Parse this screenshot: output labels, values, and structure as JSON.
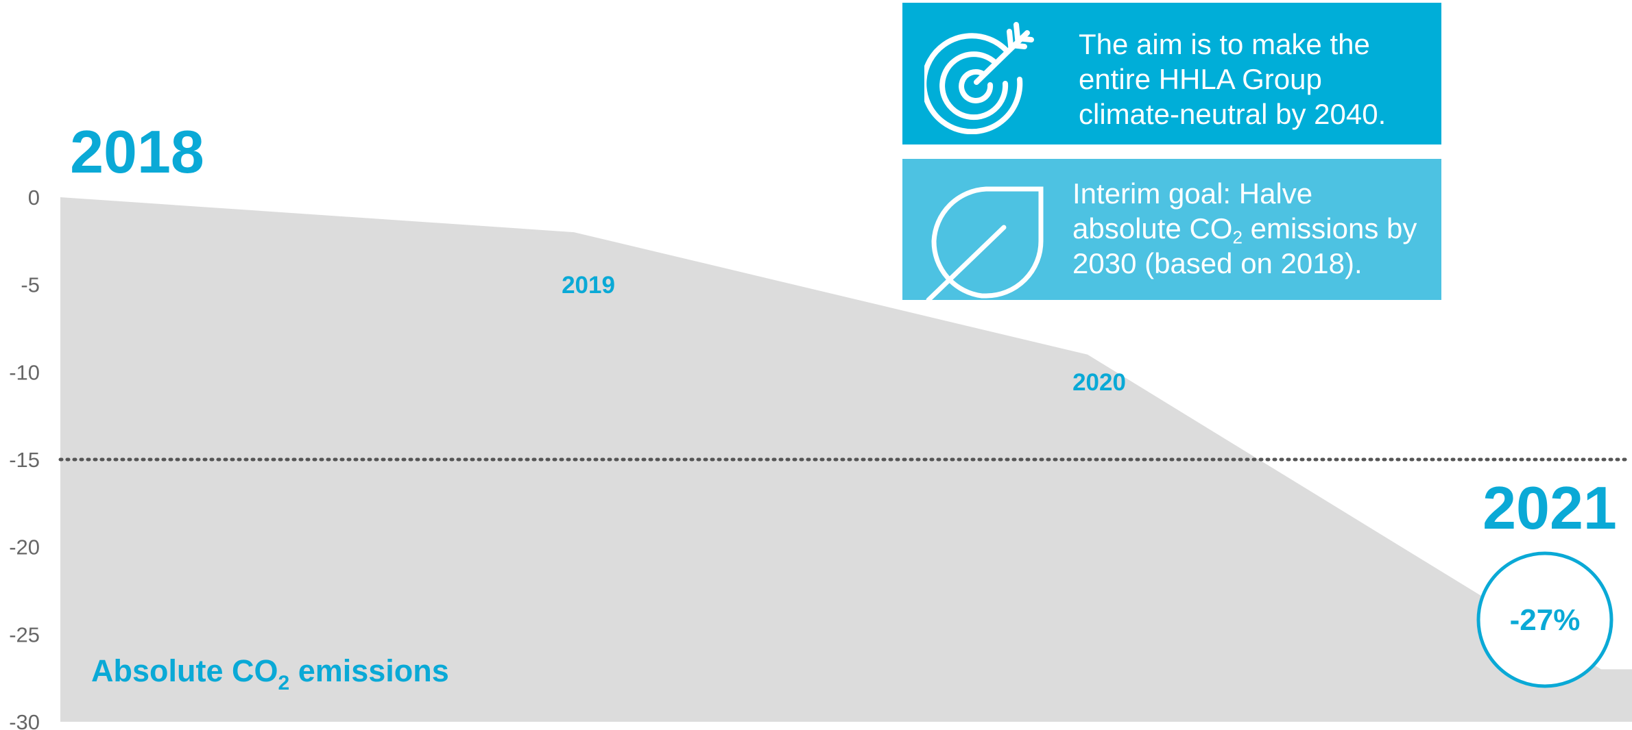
{
  "colors": {
    "accent": "#0aa9d6",
    "box_aim_bg": "#00aed8",
    "box_interim_bg": "#4dc2e2",
    "area_fill": "#dcdcdc",
    "reference_line": "#555555",
    "tick_text": "#666666"
  },
  "chart_data": {
    "type": "area",
    "x": [
      "2018",
      "2019",
      "2020",
      "2021"
    ],
    "x_extended": [
      2018,
      2019,
      2020,
      2021.0
    ],
    "series": [
      {
        "values": [
          0,
          -2,
          -9,
          -27
        ]
      }
    ],
    "ylim": [
      -30,
      0
    ],
    "yticks": [
      0,
      -5,
      -10,
      -15,
      -20,
      -25,
      -30
    ],
    "ytick_labels": [
      "0",
      "-5",
      "-10",
      "-15",
      "-20",
      "-25",
      "-30"
    ],
    "reference_line": {
      "y": -15,
      "style": "dotted"
    },
    "point_labels": [
      "2018",
      "2019",
      "2020",
      "2021"
    ],
    "annotation_label": {
      "main": "Absolute CO",
      "sub": "2",
      "rest": " emissions"
    },
    "badge": "-27%",
    "grid": false,
    "legend": "none"
  },
  "info_boxes": {
    "aim": {
      "icon": "target-arrow-icon",
      "lines": [
        "The aim is to make the",
        "entire HHLA Group",
        "climate-neutral by 2040."
      ]
    },
    "interim": {
      "icon": "leaf-icon",
      "line1": "Interim goal: Halve",
      "line2_pre": "absolute CO",
      "line2_sub": "2",
      "line2_post": " emissions by",
      "line3": "2030 (based on 2018)."
    }
  }
}
